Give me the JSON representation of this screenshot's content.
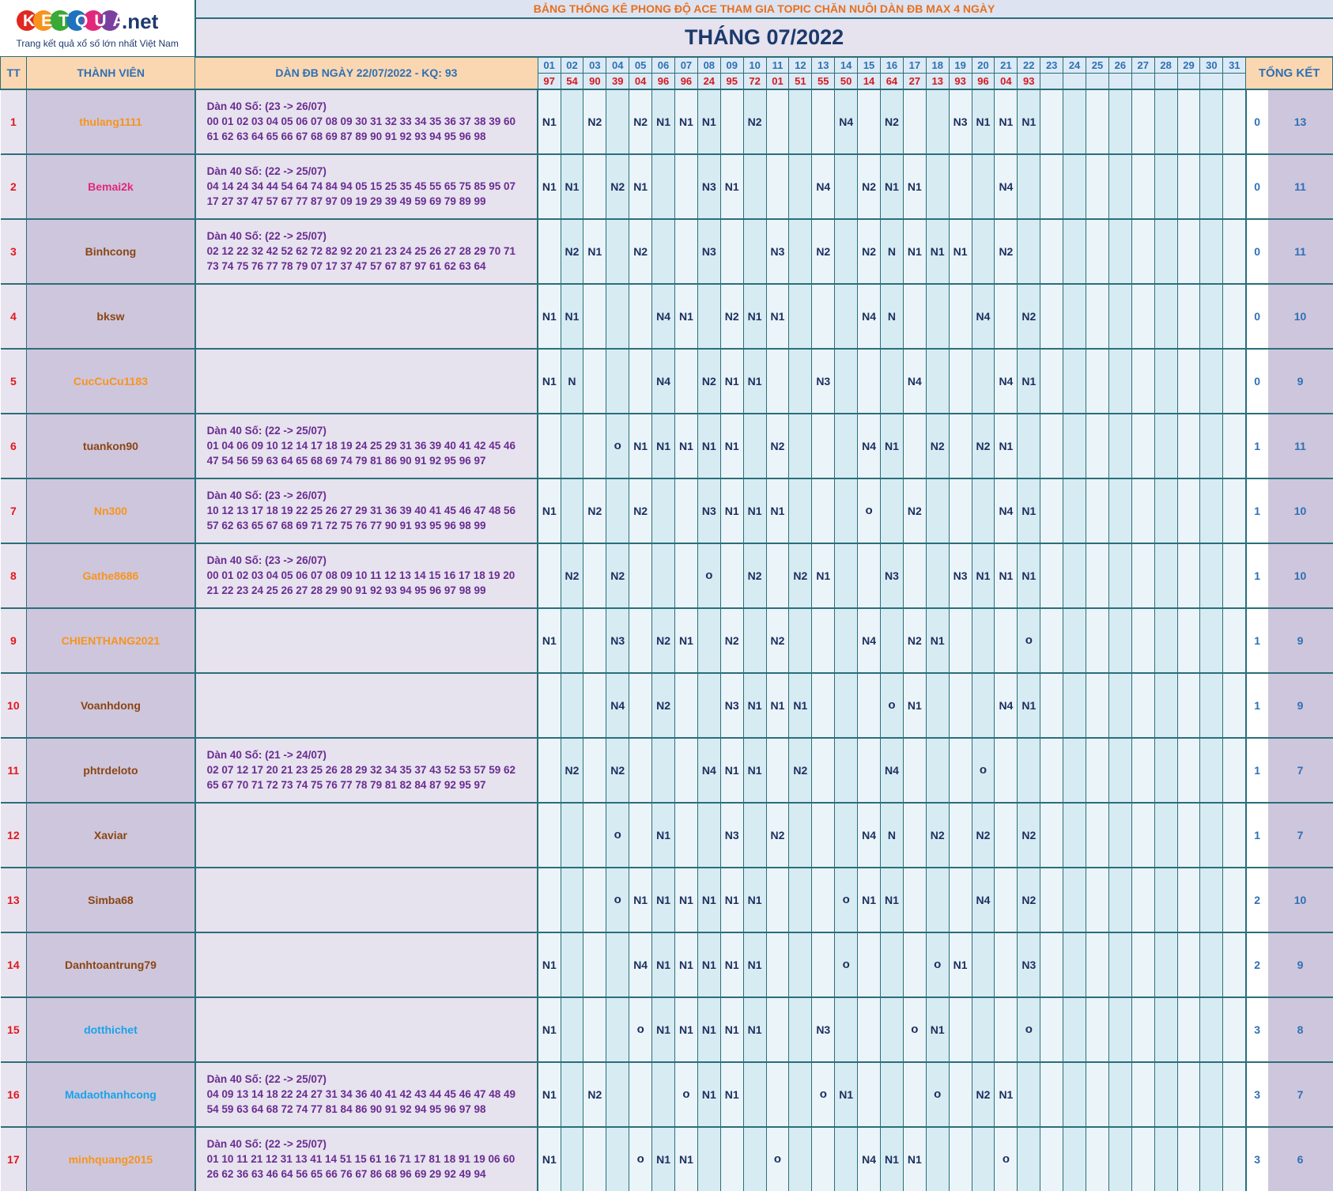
{
  "logo": {
    "brand": "KETQUA.net",
    "tagline": "Trang kết quả xổ số lớn nhất Việt Nam"
  },
  "banner": "BẢNG THỐNG KÊ PHONG ĐỘ ACE THAM GIA TOPIC CHĂN NUÔI DÀN ĐB MAX 4 NGÀY",
  "month_title": "THÁNG 07/2022",
  "headers": {
    "tt": "TT",
    "member": "THÀNH VIÊN",
    "dan": "DÀN ĐB NGÀY 22/07/2022 - KQ: 93",
    "total": "TỔNG KẾT"
  },
  "days": [
    "01",
    "02",
    "03",
    "04",
    "05",
    "06",
    "07",
    "08",
    "09",
    "10",
    "11",
    "12",
    "13",
    "14",
    "15",
    "16",
    "17",
    "18",
    "19",
    "20",
    "21",
    "22",
    "23",
    "24",
    "25",
    "26",
    "27",
    "28",
    "29",
    "30",
    "31"
  ],
  "results": [
    "97",
    "54",
    "90",
    "39",
    "04",
    "96",
    "96",
    "24",
    "95",
    "72",
    "01",
    "51",
    "55",
    "50",
    "14",
    "64",
    "27",
    "13",
    "93",
    "96",
    "04",
    "93",
    "",
    "",
    "",
    "",
    "",
    "",
    "",
    "",
    ""
  ],
  "colors": {
    "orange": "#f7941d",
    "pink": "#e2287b",
    "brown": "#8b4513",
    "blue": "#1aa3e8"
  },
  "rows": [
    {
      "tt": "1",
      "name": "thulang1111",
      "color": "orange",
      "dan_title": "Dàn 40 Số: (23 -> 26/07)",
      "dan_line1": "00 01 02 03 04 05 06 07 08 09 30 31 32 33 34 35 36 37 38 39 60",
      "dan_line2": "61 62 63 64 65 66 67 68 69 87 89 90 91 92 93 94 95 96 98",
      "cells": [
        "N1",
        "",
        "N2",
        "",
        "N2",
        "N1",
        "N1",
        "N1",
        "",
        "N2",
        "",
        "",
        "",
        "N4",
        "",
        "N2",
        "",
        "",
        "N3",
        "N1",
        "N1",
        "N1",
        "",
        "",
        "",
        "",
        "",
        "",
        "",
        "",
        ""
      ],
      "fail": "0",
      "total": "13"
    },
    {
      "tt": "2",
      "name": "Bemai2k",
      "color": "pink",
      "dan_title": "Dàn 40 Số: (22 -> 25/07)",
      "dan_line1": "04 14 24 34 44 54 64 74 84 94 05 15 25 35 45 55 65 75 85 95 07",
      "dan_line2": "17 27 37 47 57 67 77 87 97 09 19 29 39 49 59 69 79 89 99",
      "cells": [
        "N1",
        "N1",
        "",
        "N2",
        "N1",
        "",
        "",
        "N3",
        "N1",
        "",
        "",
        "",
        "N4",
        "",
        "N2",
        "N1",
        "N1",
        "",
        "",
        "",
        "N4",
        "",
        "",
        "",
        "",
        "",
        "",
        "",
        "",
        "",
        ""
      ],
      "fail": "0",
      "total": "11"
    },
    {
      "tt": "3",
      "name": "Binhcong",
      "color": "brown",
      "dan_title": "Dàn 40 Số: (22 -> 25/07)",
      "dan_line1": "02 12 22 32 42 52 62 72 82 92 20 21 23 24 25 26 27 28 29 70 71",
      "dan_line2": "73 74 75 76 77 78 79 07 17 37 47 57 67 87 97 61 62 63 64",
      "cells": [
        "",
        "N2",
        "N1",
        "",
        "N2",
        "",
        "",
        "N3",
        "",
        "",
        "N3",
        "",
        "N2",
        "",
        "N2",
        "N",
        "N1",
        "N1",
        "N1",
        "",
        "N2",
        "",
        "",
        "",
        "",
        "",
        "",
        "",
        "",
        "",
        ""
      ],
      "fail": "0",
      "total": "11"
    },
    {
      "tt": "4",
      "name": "bksw",
      "color": "brown",
      "dan_title": "",
      "dan_line1": "",
      "dan_line2": "",
      "cells": [
        "N1",
        "N1",
        "",
        "",
        "",
        "N4",
        "N1",
        "",
        "N2",
        "N1",
        "N1",
        "",
        "",
        "",
        "N4",
        "N",
        "",
        "",
        "",
        "N4",
        "",
        "N2",
        "",
        "",
        "",
        "",
        "",
        "",
        "",
        "",
        ""
      ],
      "fail": "0",
      "total": "10"
    },
    {
      "tt": "5",
      "name": "CucCuCu1183",
      "color": "orange",
      "dan_title": "",
      "dan_line1": "",
      "dan_line2": "",
      "cells": [
        "N1",
        "N",
        "",
        "",
        "",
        "N4",
        "",
        "N2",
        "N1",
        "N1",
        "",
        "",
        "N3",
        "",
        "",
        "",
        "N4",
        "",
        "",
        "",
        "N4",
        "N1",
        "",
        "",
        "",
        "",
        "",
        "",
        "",
        "",
        ""
      ],
      "fail": "0",
      "total": "9"
    },
    {
      "tt": "6",
      "name": "tuankon90",
      "color": "brown",
      "dan_title": "Dàn 40 Số: (22 -> 25/07)",
      "dan_line1": "01 04 06 09 10 12 14 17 18 19 24 25 29 31 36 39 40 41 42 45 46",
      "dan_line2": "47 54 56 59 63 64 65 68 69 74 79 81 86 90 91 92 95 96 97",
      "cells": [
        "",
        "",
        "",
        "o",
        "N1",
        "N1",
        "N1",
        "N1",
        "N1",
        "",
        "N2",
        "",
        "",
        "",
        "N4",
        "N1",
        "",
        "N2",
        "",
        "N2",
        "N1",
        "",
        "",
        "",
        "",
        "",
        "",
        "",
        "",
        "",
        ""
      ],
      "fail": "1",
      "total": "11"
    },
    {
      "tt": "7",
      "name": "Nn300",
      "color": "orange",
      "dan_title": "Dàn 40 Số: (23 -> 26/07)",
      "dan_line1": "10 12 13 17 18 19 22 25 26 27 29 31 36 39 40 41 45 46 47 48 56",
      "dan_line2": "57 62 63 65 67 68 69 71 72 75 76 77 90 91 93 95 96 98 99",
      "cells": [
        "N1",
        "",
        "N2",
        "",
        "N2",
        "",
        "",
        "N3",
        "N1",
        "N1",
        "N1",
        "",
        "",
        "",
        "o",
        "",
        "N2",
        "",
        "",
        "",
        "N4",
        "N1",
        "",
        "",
        "",
        "",
        "",
        "",
        "",
        "",
        ""
      ],
      "fail": "1",
      "total": "10"
    },
    {
      "tt": "8",
      "name": "Gathe8686",
      "color": "orange",
      "dan_title": "Dàn 40 Số: (23 -> 26/07)",
      "dan_line1": "00 01 02 03 04 05 06 07 08 09 10 11 12 13 14 15 16 17 18 19 20",
      "dan_line2": "21 22 23 24 25 26 27 28 29 90 91 92 93 94 95 96 97 98 99",
      "cells": [
        "",
        "N2",
        "",
        "N2",
        "",
        "",
        "",
        "o",
        "",
        "N2",
        "",
        "N2",
        "N1",
        "",
        "",
        "N3",
        "",
        "",
        "N3",
        "N1",
        "N1",
        "N1",
        "",
        "",
        "",
        "",
        "",
        "",
        "",
        "",
        ""
      ],
      "fail": "1",
      "total": "10"
    },
    {
      "tt": "9",
      "name": "CHIENTHANG2021",
      "color": "orange",
      "dan_title": "",
      "dan_line1": "",
      "dan_line2": "",
      "cells": [
        "N1",
        "",
        "",
        "N3",
        "",
        "N2",
        "N1",
        "",
        "N2",
        "",
        "N2",
        "",
        "",
        "",
        "N4",
        "",
        "N2",
        "N1",
        "",
        "",
        "",
        "o",
        "",
        "",
        "",
        "",
        "",
        "",
        "",
        "",
        ""
      ],
      "fail": "1",
      "total": "9"
    },
    {
      "tt": "10",
      "name": "Voanhdong",
      "color": "brown",
      "dan_title": "",
      "dan_line1": "",
      "dan_line2": "",
      "cells": [
        "",
        "",
        "",
        "N4",
        "",
        "N2",
        "",
        "",
        "N3",
        "N1",
        "N1",
        "N1",
        "",
        "",
        "",
        "o",
        "N1",
        "",
        "",
        "",
        "N4",
        "N1",
        "",
        "",
        "",
        "",
        "",
        "",
        "",
        "",
        ""
      ],
      "fail": "1",
      "total": "9"
    },
    {
      "tt": "11",
      "name": "phtrdeloto",
      "color": "brown",
      "dan_title": "Dàn 40 Số: (21 -> 24/07)",
      "dan_line1": "02 07 12 17 20 21 23 25 26 28 29 32 34 35 37 43 52 53 57 59 62",
      "dan_line2": "65 67 70 71 72 73 74 75 76 77 78 79 81 82 84 87 92 95 97",
      "cells": [
        "",
        "N2",
        "",
        "N2",
        "",
        "",
        "",
        "N4",
        "N1",
        "N1",
        "",
        "N2",
        "",
        "",
        "",
        "N4",
        "",
        "",
        "",
        "o",
        "",
        "",
        "",
        "",
        "",
        "",
        "",
        "",
        "",
        "",
        ""
      ],
      "fail": "1",
      "total": "7"
    },
    {
      "tt": "12",
      "name": "Xaviar",
      "color": "brown",
      "dan_title": "",
      "dan_line1": "",
      "dan_line2": "",
      "cells": [
        "",
        "",
        "",
        "o",
        "",
        "N1",
        "",
        "",
        "N3",
        "",
        "N2",
        "",
        "",
        "",
        "N4",
        "N",
        "",
        "N2",
        "",
        "N2",
        "",
        "N2",
        "",
        "",
        "",
        "",
        "",
        "",
        "",
        "",
        ""
      ],
      "fail": "1",
      "total": "7"
    },
    {
      "tt": "13",
      "name": "Simba68",
      "color": "brown",
      "dan_title": "",
      "dan_line1": "",
      "dan_line2": "",
      "cells": [
        "",
        "",
        "",
        "o",
        "N1",
        "N1",
        "N1",
        "N1",
        "N1",
        "N1",
        "",
        "",
        "",
        "o",
        "N1",
        "N1",
        "",
        "",
        "",
        "N4",
        "",
        "N2",
        "",
        "",
        "",
        "",
        "",
        "",
        "",
        "",
        ""
      ],
      "fail": "2",
      "total": "10"
    },
    {
      "tt": "14",
      "name": "Danhtoantrung79",
      "color": "brown",
      "dan_title": "",
      "dan_line1": "",
      "dan_line2": "",
      "cells": [
        "N1",
        "",
        "",
        "",
        "N4",
        "N1",
        "N1",
        "N1",
        "N1",
        "N1",
        "",
        "",
        "",
        "o",
        "",
        "",
        "",
        "o",
        "N1",
        "",
        "",
        "N3",
        "",
        "",
        "",
        "",
        "",
        "",
        "",
        "",
        ""
      ],
      "fail": "2",
      "total": "9"
    },
    {
      "tt": "15",
      "name": "dotthichet",
      "color": "blue",
      "dan_title": "",
      "dan_line1": "",
      "dan_line2": "",
      "cells": [
        "N1",
        "",
        "",
        "",
        "o",
        "N1",
        "N1",
        "N1",
        "N1",
        "N1",
        "",
        "",
        "N3",
        "",
        "",
        "",
        "o",
        "N1",
        "",
        "",
        "",
        "o",
        "",
        "",
        "",
        "",
        "",
        "",
        "",
        "",
        ""
      ],
      "fail": "3",
      "total": "8"
    },
    {
      "tt": "16",
      "name": "Madaothanhcong",
      "color": "blue",
      "dan_title": "Dàn 40 Số: (22 -> 25/07)",
      "dan_line1": "04 09 13 14 18 22 24 27 31 34 36 40 41 42 43 44 45 46 47 48 49",
      "dan_line2": "54 59 63 64 68 72 74 77 81 84 86 90 91 92 94 95 96 97 98",
      "cells": [
        "N1",
        "",
        "N2",
        "",
        "",
        "",
        "o",
        "N1",
        "N1",
        "",
        "",
        "",
        "o",
        "N1",
        "",
        "",
        "",
        "o",
        "",
        "N2",
        "N1",
        "",
        "",
        "",
        "",
        "",
        "",
        "",
        "",
        "",
        ""
      ],
      "fail": "3",
      "total": "7"
    },
    {
      "tt": "17",
      "name": "minhquang2015",
      "color": "orange",
      "dan_title": "Dàn 40 Số: (22 -> 25/07)",
      "dan_line1": "01 10 11 21 12 31 13 41 14 51 15 61 16 71 17 81 18 91 19 06 60",
      "dan_line2": "26 62 36 63 46 64 56 65 66 76 67 86 68 96 69 29 92 49 94",
      "cells": [
        "N1",
        "",
        "",
        "",
        "o",
        "N1",
        "N1",
        "",
        "",
        "",
        "o",
        "",
        "",
        "",
        "N4",
        "N1",
        "N1",
        "",
        "",
        "",
        "o",
        "",
        "",
        "",
        "",
        "",
        "",
        "",
        "",
        "",
        ""
      ],
      "fail": "3",
      "total": "6"
    }
  ]
}
